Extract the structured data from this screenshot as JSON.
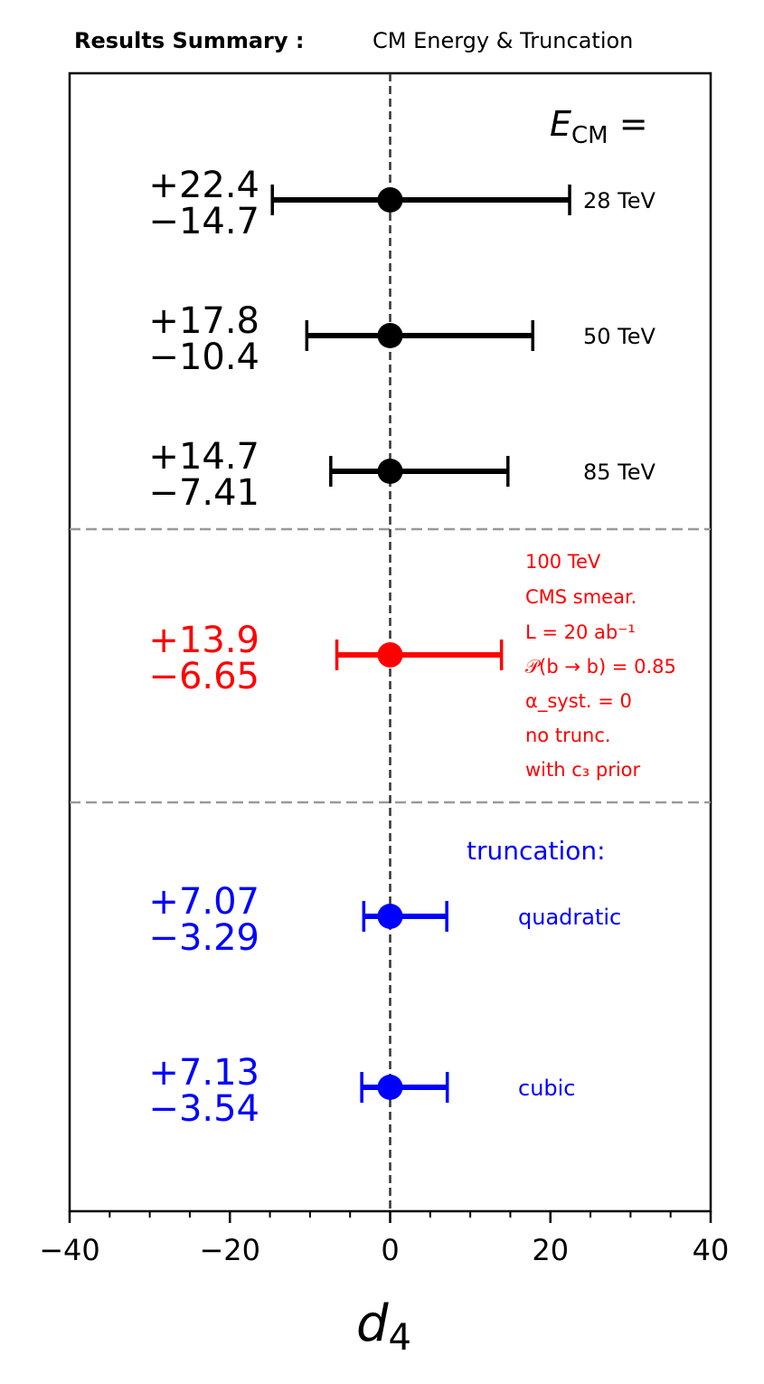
{
  "header": {
    "title_bold": "Results Summary :",
    "title_rest": "CM Energy & Truncation"
  },
  "chart_data": {
    "type": "errorbar",
    "xlabel_main": "d",
    "xlabel_sub": "4",
    "xlim": [
      -40,
      40
    ],
    "xticks": [
      {
        "value": -40,
        "label": "−40"
      },
      {
        "value": -20,
        "label": "−20"
      },
      {
        "value": 0,
        "label": "0"
      },
      {
        "value": 20,
        "label": "20"
      },
      {
        "value": 40,
        "label": "40"
      }
    ],
    "xminor": [
      -35,
      -30,
      -25,
      -15,
      -10,
      -5,
      5,
      10,
      15,
      25,
      30,
      35
    ],
    "reference_line_x": 0,
    "section_header_ecm": {
      "main": "E",
      "sub": "CM",
      "rest": " ="
    },
    "section_header_trunc": "truncation:",
    "points": [
      {
        "center": 0,
        "plus": 22.4,
        "minus": 14.7,
        "plus_label": "+22.4",
        "minus_label": "−14.7",
        "category": "28 TeV",
        "color": "#000000",
        "group": "energy"
      },
      {
        "center": 0,
        "plus": 17.8,
        "minus": 10.4,
        "plus_label": "+17.8",
        "minus_label": "−10.4",
        "category": "50 TeV",
        "color": "#000000",
        "group": "energy"
      },
      {
        "center": 0,
        "plus": 14.7,
        "minus": 7.41,
        "plus_label": "+14.7",
        "minus_label": "−7.41",
        "category": "85 TeV",
        "color": "#000000",
        "group": "energy"
      },
      {
        "center": 0,
        "plus": 13.9,
        "minus": 6.65,
        "plus_label": "+13.9",
        "minus_label": "−6.65",
        "category": "",
        "color": "#ff0000",
        "group": "baseline"
      },
      {
        "center": 0,
        "plus": 7.07,
        "minus": 3.29,
        "plus_label": "+7.07",
        "minus_label": "−3.29",
        "category": "quadratic",
        "color": "#0000ff",
        "group": "truncation"
      },
      {
        "center": 0,
        "plus": 7.13,
        "minus": 3.54,
        "plus_label": "+7.13",
        "minus_label": "−3.54",
        "category": "cubic",
        "color": "#0000ff",
        "group": "truncation"
      }
    ],
    "baseline_notes": [
      "100 TeV",
      "CMS smear.",
      "L = 20 ab⁻¹",
      "𝒫(b → b) = 0.85",
      "α_syst. = 0",
      "no trunc.",
      "with c₃ prior"
    ],
    "colors": {
      "energy": "#000000",
      "baseline": "#ff0000",
      "truncation": "#0000ff",
      "separator": "#999999",
      "zero_line": "#333333"
    }
  }
}
